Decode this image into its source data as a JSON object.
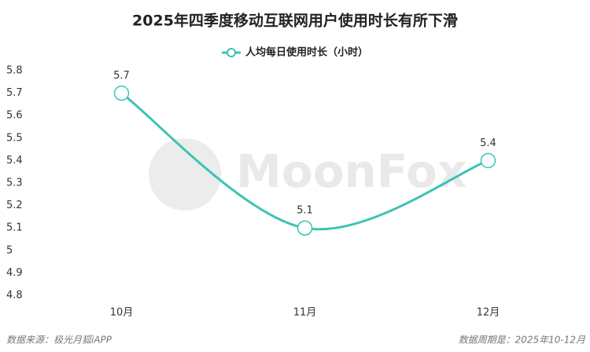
{
  "chart_data": {
    "type": "line",
    "title": "2025年四季度移动互联网用户使用时长有所下滑",
    "categories": [
      "10月",
      "11月",
      "12月"
    ],
    "series": [
      {
        "name": "人均每日使用时长（小时）",
        "color": "#3cc3b5",
        "values": [
          5.7,
          5.1,
          5.4
        ]
      }
    ],
    "ylim": [
      4.8,
      5.8
    ],
    "yticks": [
      4.8,
      4.9,
      5,
      5.1,
      5.2,
      5.3,
      5.4,
      5.5,
      5.6,
      5.7,
      5.8
    ],
    "grid": false,
    "legend": "top",
    "smooth": true,
    "watermark": "MoonFox",
    "source": "数据来源：极光月狐iAPP",
    "period": "数据周期是：2025年10-12月"
  }
}
